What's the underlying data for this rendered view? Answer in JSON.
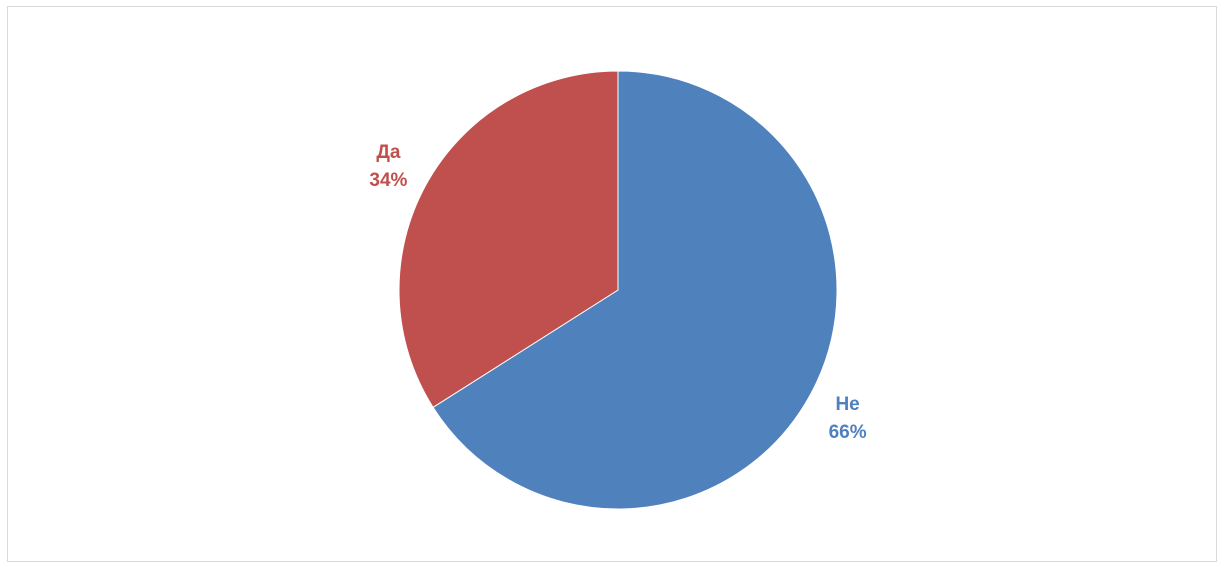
{
  "chart_data": {
    "type": "pie",
    "title": "",
    "slices": [
      {
        "label": "Не",
        "value": 66,
        "percent_label": "66%",
        "color": "#4f81bd"
      },
      {
        "label": "Да",
        "value": 34,
        "percent_label": "34%",
        "color": "#c0504d"
      }
    ],
    "start_angle_deg": 0,
    "direction": "clockwise",
    "data_labels": "outside",
    "legend": "none"
  }
}
